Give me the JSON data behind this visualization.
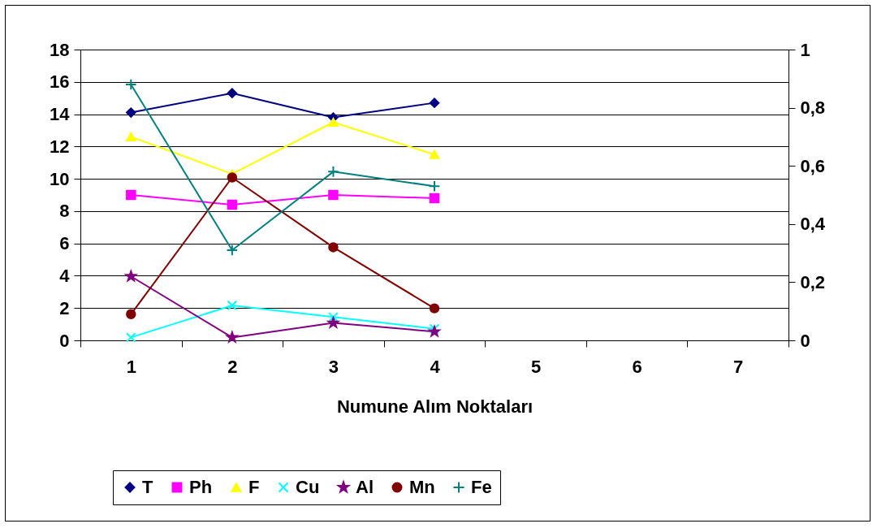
{
  "chart_data": {
    "type": "line",
    "xlabel": "Numune Alım Noktaları",
    "categories": [
      "1",
      "2",
      "3",
      "4",
      "5",
      "6",
      "7"
    ],
    "series": [
      {
        "name": "T",
        "color": "#000080",
        "marker": "diamond",
        "values": [
          14.1,
          15.3,
          13.8,
          14.7,
          null,
          null,
          null
        ]
      },
      {
        "name": "Ph",
        "color": "#ff00ff",
        "marker": "square",
        "values": [
          9.0,
          8.4,
          9.0,
          8.8,
          null,
          null,
          null
        ]
      },
      {
        "name": "F",
        "color": "#ffff00",
        "marker": "triangle",
        "values": [
          12.6,
          10.3,
          13.5,
          11.5,
          null,
          null,
          null
        ]
      },
      {
        "name": "Cu",
        "color": "#00ffff",
        "marker": "cross",
        "axis": "y2",
        "values": [
          0.01,
          0.12,
          0.08,
          0.04,
          null,
          null,
          null
        ]
      },
      {
        "name": "Al",
        "color": "#800080",
        "marker": "star",
        "axis": "y2",
        "values": [
          0.22,
          0.01,
          0.06,
          0.03,
          null,
          null,
          null
        ]
      },
      {
        "name": "Mn",
        "color": "#800000",
        "marker": "circle",
        "axis": "y2",
        "values": [
          0.09,
          0.56,
          0.32,
          0.11,
          null,
          null,
          null
        ]
      },
      {
        "name": "Fe",
        "color": "#008080",
        "marker": "plus",
        "axis": "y2",
        "values": [
          0.88,
          0.31,
          0.58,
          0.53,
          null,
          null,
          null
        ]
      }
    ],
    "ylim": [
      0,
      18
    ],
    "yticks": [
      0,
      2,
      4,
      6,
      8,
      10,
      12,
      14,
      16,
      18
    ],
    "y2lim": [
      0,
      1
    ],
    "y2ticks": [
      0,
      {
        "value": 0.2,
        "label": "0,2"
      },
      {
        "value": 0.4,
        "label": "0,4"
      },
      {
        "value": 0.6,
        "label": "0,6"
      },
      {
        "value": 0.8,
        "label": "0,8"
      },
      1
    ],
    "grid": "y",
    "legend": "bottom",
    "line_style": "solid"
  }
}
